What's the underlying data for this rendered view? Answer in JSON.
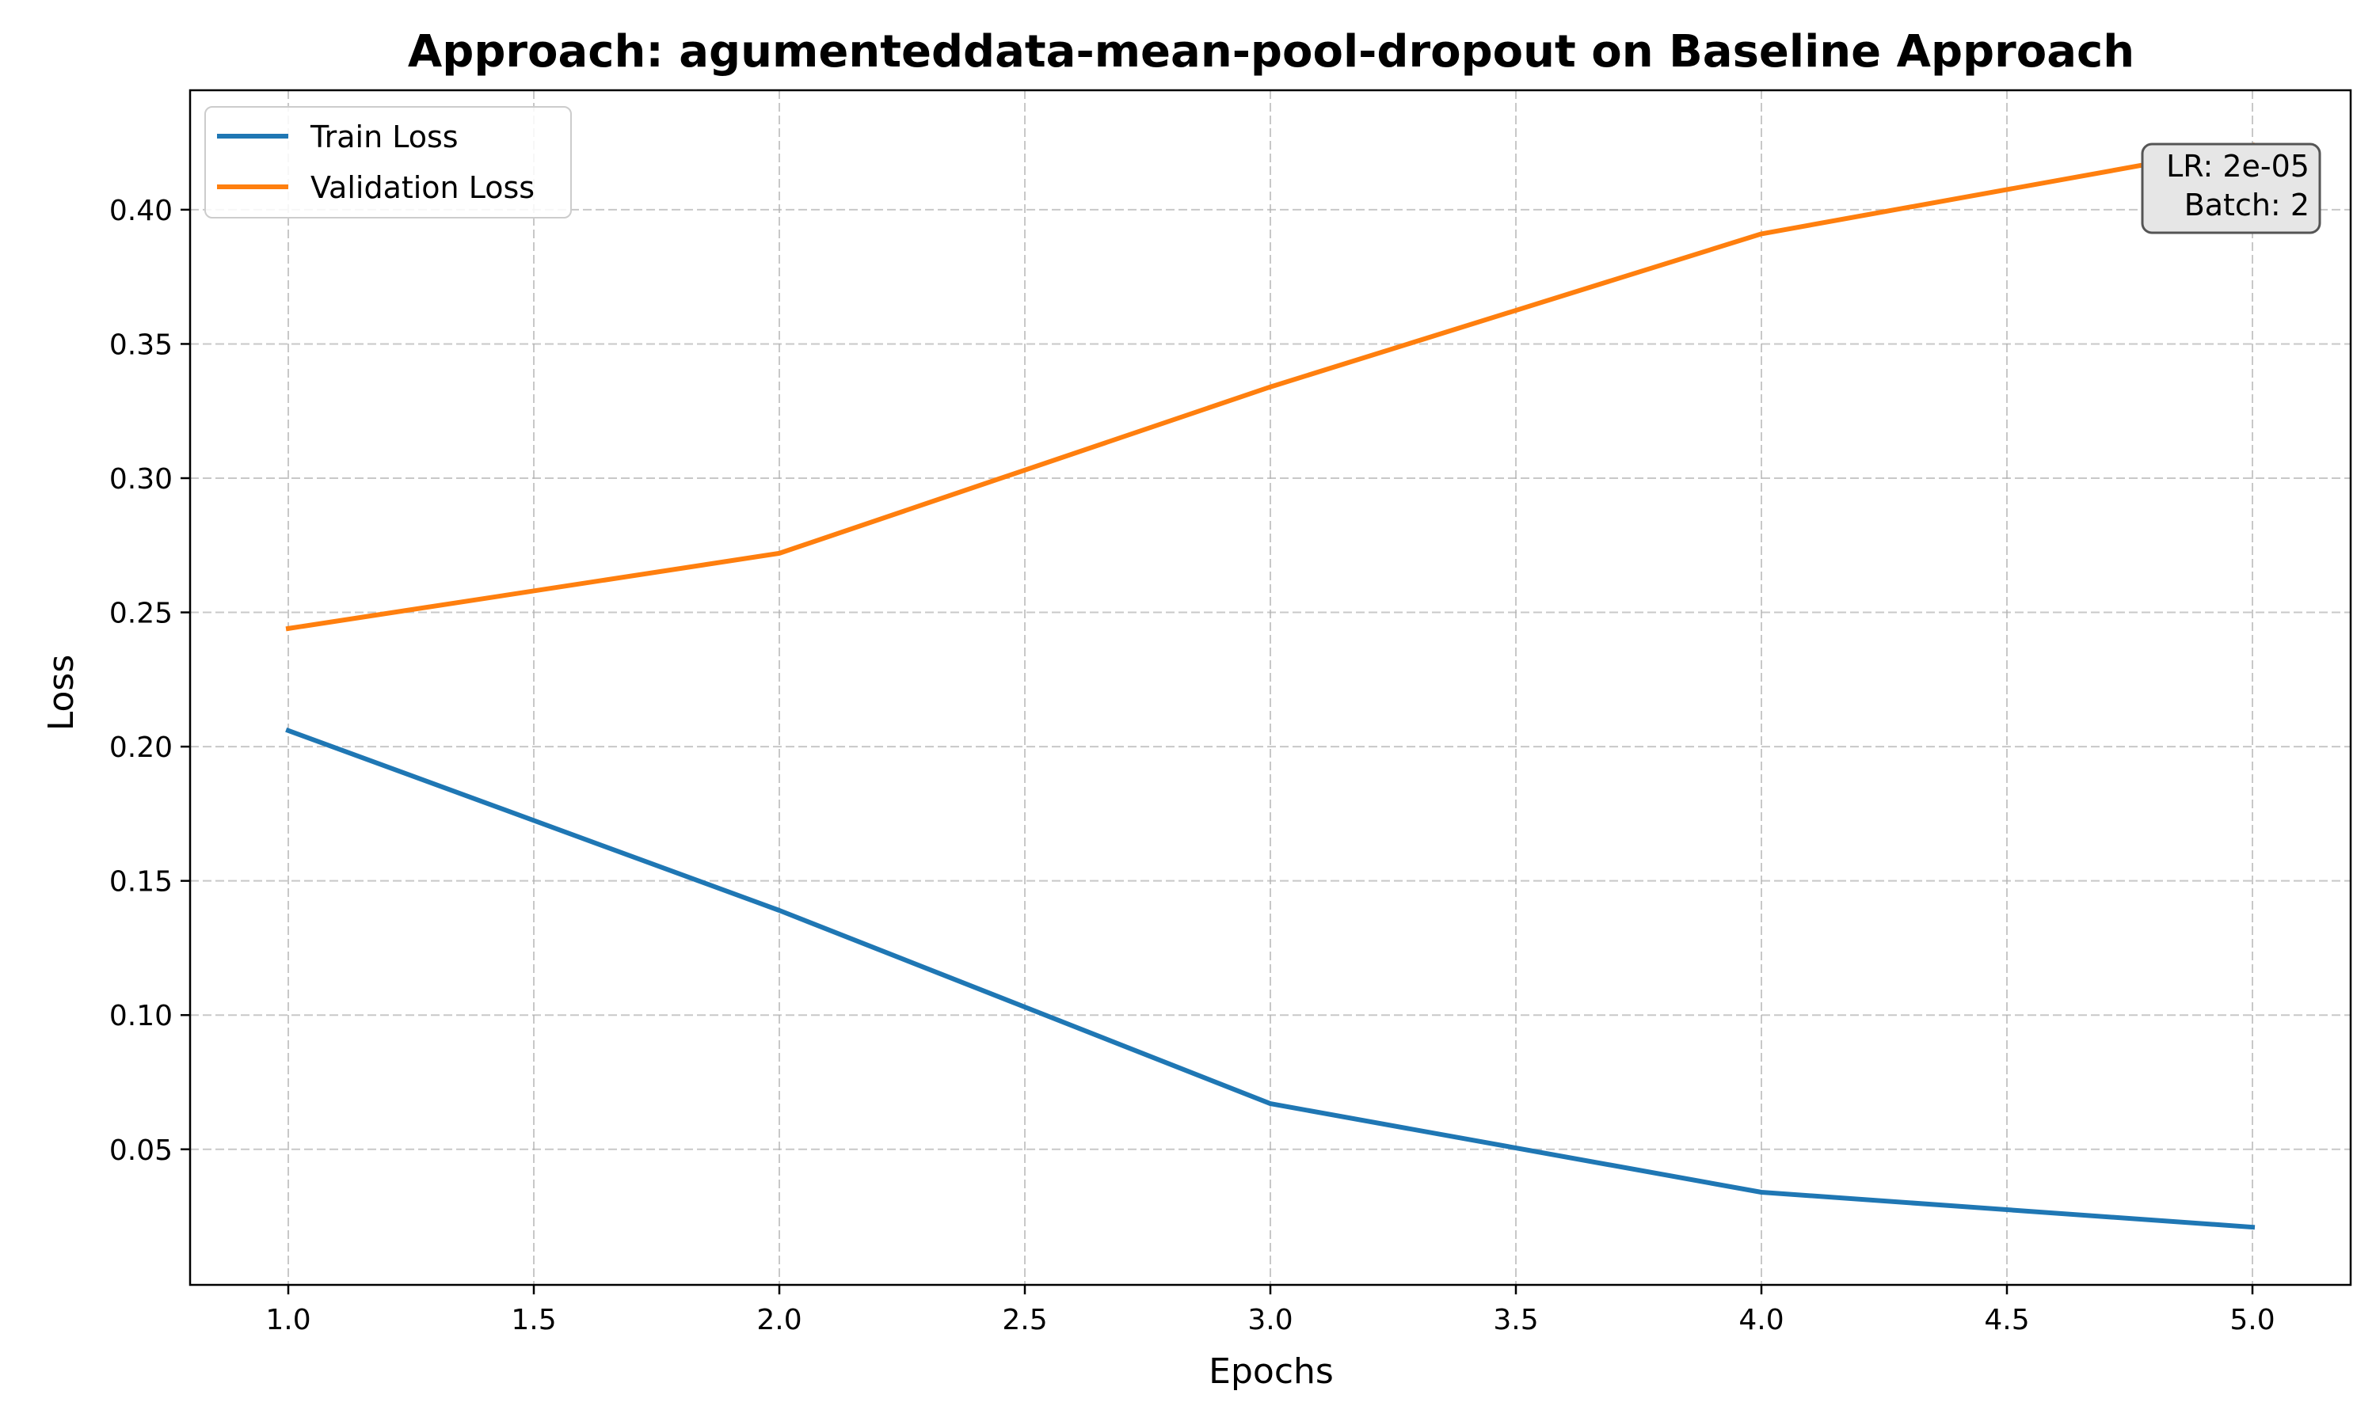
{
  "chart_data": {
    "type": "line",
    "title": "Approach: agumenteddata-mean-pool-dropout on Baseline Approach",
    "xlabel": "Epochs",
    "ylabel": "Loss",
    "xlim": [
      0.8,
      5.2
    ],
    "ylim": [
      -0.0005,
      0.4445
    ],
    "x_ticks": [
      1.0,
      1.5,
      2.0,
      2.5,
      3.0,
      3.5,
      4.0,
      4.5,
      5.0
    ],
    "x_tick_labels": [
      "1.0",
      "1.5",
      "2.0",
      "2.5",
      "3.0",
      "3.5",
      "4.0",
      "4.5",
      "5.0"
    ],
    "y_ticks": [
      0.05,
      0.1,
      0.15,
      0.2,
      0.25,
      0.3,
      0.35,
      0.4
    ],
    "y_tick_labels": [
      "0.05",
      "0.10",
      "0.15",
      "0.20",
      "0.25",
      "0.30",
      "0.35",
      "0.40"
    ],
    "grid": true,
    "legend_position": "top-left",
    "x": [
      1,
      2,
      3,
      4,
      5
    ],
    "series": [
      {
        "name": "Train Loss",
        "color": "#1f77b4",
        "values": [
          0.206,
          0.139,
          0.067,
          0.034,
          0.021
        ]
      },
      {
        "name": "Validation Loss",
        "color": "#ff7f0e",
        "values": [
          0.244,
          0.272,
          0.334,
          0.391,
          0.424
        ]
      }
    ],
    "annotation": {
      "lines": [
        "LR: 2e-05",
        "Batch: 2"
      ],
      "position": "top-right"
    }
  }
}
